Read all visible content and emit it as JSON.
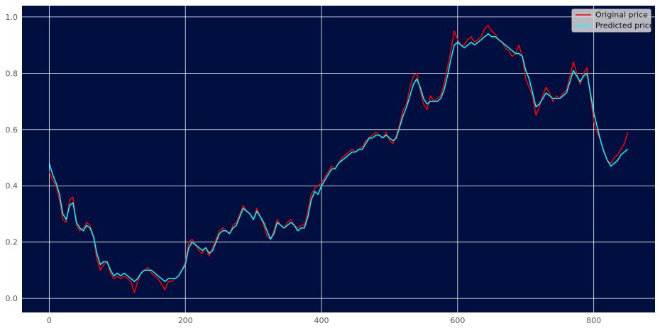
{
  "chart_data": {
    "type": "line",
    "title": "",
    "xlabel": "",
    "ylabel": "",
    "xlim": [
      -40,
      890
    ],
    "ylim": [
      -0.05,
      1.04
    ],
    "x_ticks": [
      0,
      200,
      400,
      600,
      800
    ],
    "y_ticks": [
      0.0,
      0.2,
      0.4,
      0.6,
      0.8,
      1.0
    ],
    "x_tick_labels": [
      "0",
      "200",
      "400",
      "600",
      "800"
    ],
    "y_tick_labels": [
      "0.0",
      "0.2",
      "0.4",
      "0.6",
      "0.8",
      "1.0"
    ],
    "grid": true,
    "legend_position": "top-right",
    "colors": {
      "plot_background": "#000e40",
      "grid": "#ffffff",
      "original": "#ff0000",
      "predicted": "#00ffff"
    },
    "series": [
      {
        "name": "Original price",
        "color": "#ff0000",
        "x": [
          0,
          5,
          10,
          15,
          20,
          25,
          30,
          35,
          40,
          45,
          50,
          55,
          60,
          65,
          70,
          75,
          80,
          85,
          90,
          95,
          100,
          105,
          110,
          115,
          120,
          125,
          130,
          135,
          140,
          145,
          150,
          155,
          160,
          165,
          170,
          175,
          180,
          185,
          190,
          195,
          200,
          205,
          210,
          215,
          220,
          225,
          230,
          235,
          240,
          245,
          250,
          255,
          260,
          265,
          270,
          275,
          280,
          285,
          290,
          295,
          300,
          305,
          310,
          315,
          320,
          325,
          330,
          335,
          340,
          345,
          350,
          355,
          360,
          365,
          370,
          375,
          380,
          385,
          390,
          395,
          400,
          405,
          410,
          415,
          420,
          425,
          430,
          435,
          440,
          445,
          450,
          455,
          460,
          465,
          470,
          475,
          480,
          485,
          490,
          495,
          500,
          505,
          510,
          515,
          520,
          525,
          530,
          535,
          540,
          545,
          550,
          555,
          560,
          565,
          570,
          575,
          580,
          585,
          590,
          595,
          600,
          605,
          610,
          615,
          620,
          625,
          630,
          635,
          640,
          645,
          650,
          655,
          660,
          665,
          670,
          675,
          680,
          685,
          690,
          695,
          700,
          705,
          710,
          715,
          720,
          725,
          730,
          735,
          740,
          745,
          750,
          755,
          760,
          765,
          770,
          775,
          780,
          785,
          790,
          795,
          800,
          805,
          810,
          815,
          820,
          825,
          830,
          835,
          840,
          845,
          850
        ],
        "y": [
          0.45,
          0.42,
          0.4,
          0.35,
          0.28,
          0.27,
          0.35,
          0.36,
          0.26,
          0.24,
          0.25,
          0.27,
          0.26,
          0.22,
          0.14,
          0.1,
          0.12,
          0.13,
          0.09,
          0.07,
          0.08,
          0.07,
          0.08,
          0.07,
          0.06,
          0.02,
          0.06,
          0.09,
          0.1,
          0.11,
          0.09,
          0.08,
          0.07,
          0.05,
          0.03,
          0.06,
          0.06,
          0.07,
          0.08,
          0.1,
          0.13,
          0.2,
          0.21,
          0.19,
          0.17,
          0.16,
          0.18,
          0.15,
          0.18,
          0.21,
          0.24,
          0.25,
          0.24,
          0.23,
          0.26,
          0.27,
          0.3,
          0.33,
          0.31,
          0.3,
          0.28,
          0.32,
          0.29,
          0.26,
          0.22,
          0.21,
          0.24,
          0.28,
          0.26,
          0.25,
          0.27,
          0.28,
          0.26,
          0.25,
          0.26,
          0.26,
          0.31,
          0.37,
          0.39,
          0.4,
          0.41,
          0.43,
          0.45,
          0.47,
          0.46,
          0.48,
          0.5,
          0.51,
          0.52,
          0.53,
          0.52,
          0.53,
          0.54,
          0.56,
          0.57,
          0.58,
          0.59,
          0.58,
          0.57,
          0.59,
          0.56,
          0.55,
          0.58,
          0.62,
          0.67,
          0.69,
          0.75,
          0.79,
          0.8,
          0.74,
          0.69,
          0.67,
          0.72,
          0.7,
          0.71,
          0.72,
          0.76,
          0.82,
          0.88,
          0.95,
          0.92,
          0.9,
          0.9,
          0.92,
          0.93,
          0.91,
          0.92,
          0.93,
          0.96,
          0.97,
          0.95,
          0.94,
          0.92,
          0.91,
          0.89,
          0.88,
          0.86,
          0.87,
          0.9,
          0.86,
          0.78,
          0.75,
          0.72,
          0.65,
          0.68,
          0.72,
          0.75,
          0.73,
          0.7,
          0.72,
          0.71,
          0.73,
          0.74,
          0.79,
          0.84,
          0.8,
          0.76,
          0.8,
          0.82,
          0.72,
          0.63,
          0.59,
          0.56,
          0.52,
          0.49,
          0.48,
          0.5,
          0.51,
          0.53,
          0.55,
          0.59
        ]
      },
      {
        "name": "Predicted price",
        "color": "#00ffff",
        "x": [
          0,
          5,
          10,
          15,
          20,
          25,
          30,
          35,
          40,
          45,
          50,
          55,
          60,
          65,
          70,
          75,
          80,
          85,
          90,
          95,
          100,
          105,
          110,
          115,
          120,
          125,
          130,
          135,
          140,
          145,
          150,
          155,
          160,
          165,
          170,
          175,
          180,
          185,
          190,
          195,
          200,
          205,
          210,
          215,
          220,
          225,
          230,
          235,
          240,
          245,
          250,
          255,
          260,
          265,
          270,
          275,
          280,
          285,
          290,
          295,
          300,
          305,
          310,
          315,
          320,
          325,
          330,
          335,
          340,
          345,
          350,
          355,
          360,
          365,
          370,
          375,
          380,
          385,
          390,
          395,
          400,
          405,
          410,
          415,
          420,
          425,
          430,
          435,
          440,
          445,
          450,
          455,
          460,
          465,
          470,
          475,
          480,
          485,
          490,
          495,
          500,
          505,
          510,
          515,
          520,
          525,
          530,
          535,
          540,
          545,
          550,
          555,
          560,
          565,
          570,
          575,
          580,
          585,
          590,
          595,
          600,
          605,
          610,
          615,
          620,
          625,
          630,
          635,
          640,
          645,
          650,
          655,
          660,
          665,
          670,
          675,
          680,
          685,
          690,
          695,
          700,
          705,
          710,
          715,
          720,
          725,
          730,
          735,
          740,
          745,
          750,
          755,
          760,
          765,
          770,
          775,
          780,
          785,
          790,
          795,
          800,
          805,
          810,
          815,
          820,
          825,
          830,
          835,
          840,
          845,
          850
        ],
        "y": [
          0.48,
          0.44,
          0.41,
          0.37,
          0.3,
          0.28,
          0.33,
          0.34,
          0.27,
          0.25,
          0.24,
          0.26,
          0.25,
          0.22,
          0.16,
          0.12,
          0.13,
          0.13,
          0.1,
          0.08,
          0.09,
          0.08,
          0.09,
          0.08,
          0.07,
          0.06,
          0.07,
          0.09,
          0.1,
          0.1,
          0.1,
          0.09,
          0.08,
          0.07,
          0.06,
          0.07,
          0.07,
          0.07,
          0.08,
          0.1,
          0.12,
          0.18,
          0.2,
          0.19,
          0.18,
          0.17,
          0.18,
          0.16,
          0.17,
          0.2,
          0.23,
          0.24,
          0.24,
          0.23,
          0.25,
          0.26,
          0.29,
          0.32,
          0.31,
          0.3,
          0.28,
          0.31,
          0.29,
          0.27,
          0.24,
          0.21,
          0.23,
          0.27,
          0.26,
          0.25,
          0.26,
          0.27,
          0.26,
          0.24,
          0.25,
          0.25,
          0.29,
          0.35,
          0.38,
          0.37,
          0.4,
          0.42,
          0.44,
          0.46,
          0.46,
          0.48,
          0.49,
          0.5,
          0.51,
          0.52,
          0.52,
          0.53,
          0.53,
          0.55,
          0.57,
          0.57,
          0.58,
          0.58,
          0.57,
          0.58,
          0.57,
          0.56,
          0.57,
          0.61,
          0.65,
          0.68,
          0.72,
          0.76,
          0.78,
          0.75,
          0.71,
          0.69,
          0.7,
          0.7,
          0.7,
          0.71,
          0.74,
          0.79,
          0.85,
          0.9,
          0.91,
          0.9,
          0.89,
          0.9,
          0.91,
          0.9,
          0.91,
          0.92,
          0.93,
          0.94,
          0.93,
          0.93,
          0.92,
          0.91,
          0.9,
          0.89,
          0.88,
          0.87,
          0.87,
          0.86,
          0.81,
          0.78,
          0.73,
          0.68,
          0.69,
          0.71,
          0.73,
          0.72,
          0.71,
          0.71,
          0.71,
          0.72,
          0.73,
          0.77,
          0.81,
          0.79,
          0.77,
          0.79,
          0.8,
          0.73,
          0.66,
          0.61,
          0.56,
          0.52,
          0.49,
          0.47,
          0.48,
          0.49,
          0.51,
          0.52,
          0.53
        ]
      }
    ]
  }
}
